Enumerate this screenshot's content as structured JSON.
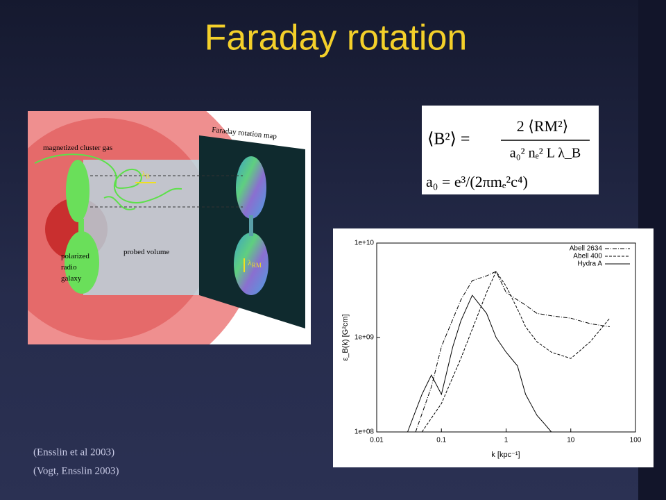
{
  "slide": {
    "title": "Faraday rotation",
    "citations": [
      "(Ensslin et al  2003)",
      "(Vogt, Ensslin  2003)"
    ]
  },
  "diagram": {
    "map_title": "Faraday rotation map",
    "gas_label": "magnetized cluster gas",
    "galaxy_label": [
      "polarized",
      "radio",
      "galaxy"
    ],
    "volume_label": "probed volume",
    "lambda_b": {
      "symbol": "λ",
      "sub": "B"
    },
    "lambda_rm": {
      "symbol": "λ",
      "sub": "RM"
    }
  },
  "equation": {
    "lhs": "⟨B²⟩ =",
    "numerator": "2 ⟨RM²⟩",
    "denominator": "a₀² nₑ² L λ_B",
    "second": "a₀  =  e³/(2πmₑ²c⁴)"
  },
  "chart_data": {
    "type": "line",
    "xlabel": "k [kpc⁻¹]",
    "ylabel": "ε_B(k) [G²cm]",
    "xscale": "log",
    "yscale": "log",
    "xlim": [
      0.01,
      100
    ],
    "ylim": [
      100000000,
      10000000000
    ],
    "xticks": [
      0.01,
      0.1,
      1,
      10,
      100
    ],
    "yticks": [
      {
        "value": 100000000,
        "label": "1e+08"
      },
      {
        "value": 1000000000,
        "label": "1e+09"
      },
      {
        "value": 10000000000,
        "label": "1e+10"
      }
    ],
    "legend": "upper right",
    "series": [
      {
        "name": "Abell 2634",
        "color": "#000000",
        "dash": "6 2 1 2",
        "x": [
          0.04,
          0.07,
          0.1,
          0.2,
          0.3,
          0.5,
          0.7,
          1,
          1.5,
          2,
          3,
          5,
          10,
          20,
          40
        ],
        "values": [
          100000000,
          300000000,
          800000000,
          2500000000,
          4000000000,
          4500000000,
          5000000000,
          3000000000,
          2500000000,
          2200000000,
          1800000000,
          1700000000,
          1600000000,
          1400000000,
          1300000000
        ]
      },
      {
        "name": "Abell 400",
        "color": "#000000",
        "dash": "4 2",
        "x": [
          0.05,
          0.1,
          0.2,
          0.5,
          0.7,
          1,
          1.5,
          2,
          3,
          5,
          10,
          20,
          40
        ],
        "values": [
          100000000,
          200000000,
          600000000,
          3000000000,
          5000000000,
          3500000000,
          2000000000,
          1300000000,
          900000000,
          700000000,
          600000000,
          900000000,
          1600000000
        ]
      },
      {
        "name": "Hydra A",
        "color": "#000000",
        "dash": "none",
        "x": [
          0.03,
          0.05,
          0.07,
          0.1,
          0.15,
          0.2,
          0.3,
          0.5,
          0.7,
          1,
          1.5,
          2,
          3,
          4,
          5
        ],
        "values": [
          100000000,
          250000000,
          400000000,
          250000000,
          800000000,
          1500000000,
          2800000000,
          1800000000,
          1000000000,
          700000000,
          500000000,
          250000000,
          150000000,
          120000000,
          100000000
        ]
      }
    ]
  }
}
